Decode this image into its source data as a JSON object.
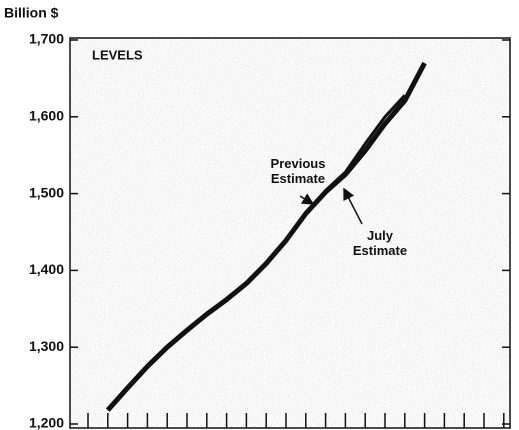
{
  "chart_data": {
    "type": "line",
    "y_axis_label": "Billion $",
    "subtitle": "LEVELS",
    "categories": [
      null,
      null,
      null,
      null,
      null,
      null,
      null,
      null,
      null,
      null,
      null,
      null,
      null,
      null,
      null,
      null,
      null,
      null,
      null,
      null,
      null,
      null
    ],
    "series": [
      {
        "name": "Previous Estimate",
        "color": "#111111",
        "values": [
          null,
          1218,
          1247,
          1275,
          1300,
          1322,
          1343,
          1362,
          1383,
          1409,
          1439,
          1474,
          1502,
          1525,
          1556,
          1591,
          1621,
          1670,
          null,
          null,
          null,
          null
        ]
      },
      {
        "name": "July Estimate",
        "color": "#111111",
        "values": [
          null,
          1218,
          1247,
          1275,
          1300,
          1322,
          1343,
          1362,
          1383,
          1409,
          1439,
          1474,
          1504,
          1528,
          1565,
          1600,
          1628,
          null,
          null,
          null,
          null,
          null
        ]
      }
    ],
    "ylim": [
      1200,
      1700
    ],
    "yticks": [
      {
        "value": 1200,
        "label": "1,200"
      },
      {
        "value": 1300,
        "label": "1,300"
      },
      {
        "value": 1400,
        "label": "1,400"
      },
      {
        "value": 1500,
        "label": "1,500"
      },
      {
        "value": 1600,
        "label": "1,600"
      },
      {
        "value": 1700,
        "label": "1,700"
      }
    ]
  }
}
